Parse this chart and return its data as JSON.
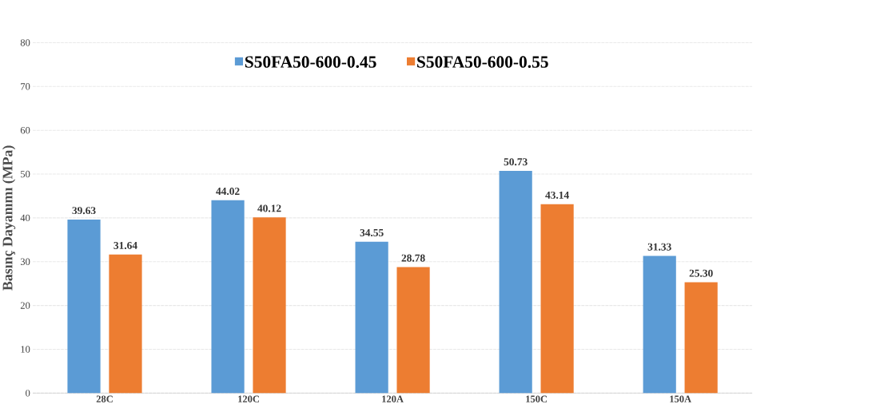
{
  "chart_data": {
    "type": "bar",
    "ylabel": "Basınç Dayanımı (MPa)",
    "categories": [
      "28C",
      "120C",
      "120A",
      "150C",
      "150A"
    ],
    "series": [
      {
        "name": "S50FA50-600-0.45",
        "color": "#5b9bd5",
        "values": [
          39.63,
          44.02,
          34.55,
          50.73,
          31.33
        ],
        "value_labels": [
          "39.63",
          "44.02",
          "34.55",
          "50.73",
          "31.33"
        ]
      },
      {
        "name": "S50FA50-600-0.55",
        "color": "#ed7d31",
        "values": [
          31.64,
          40.12,
          28.78,
          43.14,
          25.3
        ],
        "value_labels": [
          "31.64",
          "40.12",
          "28.78",
          "43.14",
          "25.30"
        ]
      }
    ],
    "ylim": [
      0,
      80
    ],
    "yticks": [
      0,
      10,
      20,
      30,
      40,
      50,
      60,
      70,
      80
    ],
    "grid": "y",
    "legend": "top"
  }
}
